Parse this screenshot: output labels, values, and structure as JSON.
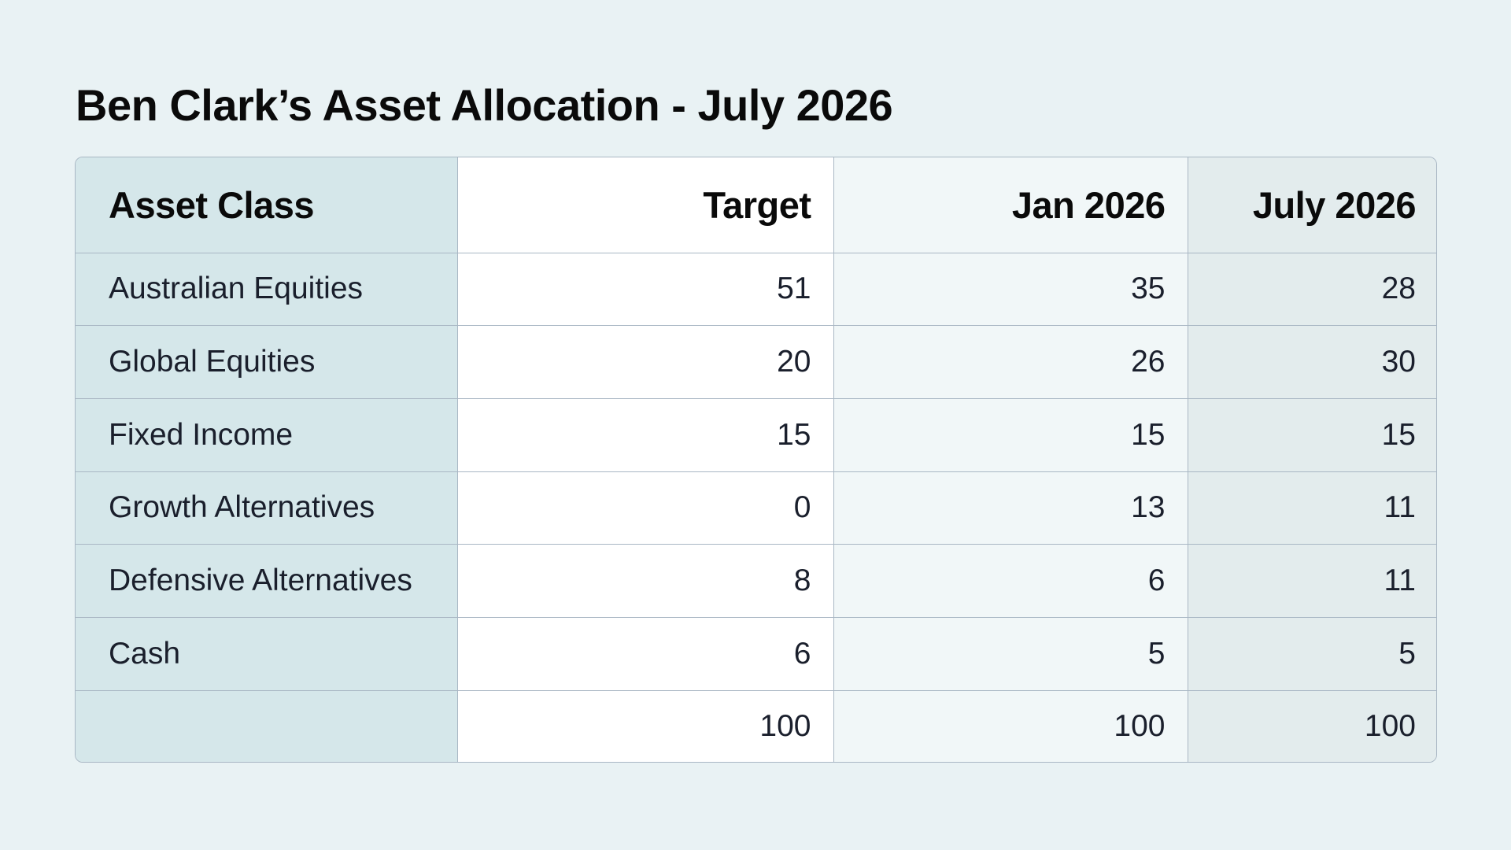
{
  "title": "Ben Clark’s Asset Allocation - July 2026",
  "table": {
    "headers": [
      "Asset Class",
      "Target",
      "Jan 2026",
      "July 2026"
    ],
    "rows": [
      [
        "Australian Equities",
        "51",
        "35",
        "28"
      ],
      [
        "Global Equities",
        "20",
        "26",
        "30"
      ],
      [
        "Fixed Income",
        "15",
        "15",
        "15"
      ],
      [
        "Growth Alternatives",
        "0",
        "13",
        "11"
      ],
      [
        "Defensive Alternatives",
        "8",
        "6",
        "11"
      ],
      [
        "Cash",
        "6",
        "5",
        "5"
      ],
      [
        "",
        "100",
        "100",
        "100"
      ]
    ]
  },
  "colors": {
    "page_background": "#e9f2f4",
    "label_column": "#d5e7ea",
    "target_column": "#ffffff",
    "jan_column": "#f1f7f8",
    "july_column": "#e3eced",
    "border": "#a9b7c4"
  }
}
